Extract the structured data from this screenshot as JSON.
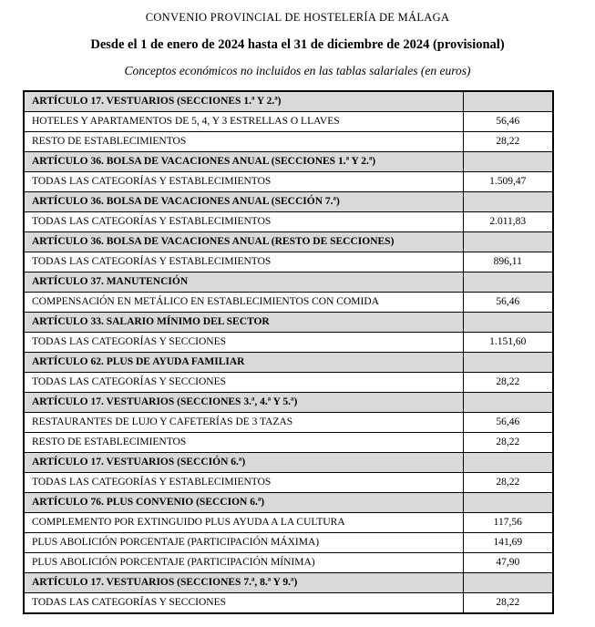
{
  "page": {
    "title": "CONVENIO PROVINCIAL DE HOSTELERÍA DE MÁLAGA",
    "subtitle": "Desde el 1 de enero de 2024 hasta el 31 de diciembre de 2024 (provisional)",
    "caption": "Conceptos económicos no incluidos en las tablas salariales (en euros)"
  },
  "colors": {
    "section_row_background": "#d9d9d9",
    "border": "#000000",
    "text": "#000000",
    "page_background": "#ffffff"
  },
  "table": {
    "rows": [
      {
        "type": "section",
        "label": "ARTÍCULO 17. VESTUARIOS (SECCIONES 1.ª Y 2.ª)",
        "value": ""
      },
      {
        "type": "item",
        "label": "HOTELES Y APARTAMENTOS DE 5, 4, Y 3 ESTRELLAS O LLAVES",
        "value": "56,46"
      },
      {
        "type": "item",
        "label": "RESTO DE ESTABLECIMIENTOS",
        "value": "28,22"
      },
      {
        "type": "section",
        "label": "ARTÍCULO 36. BOLSA DE VACACIONES ANUAL (SECCIONES 1.ª Y 2.ª)",
        "value": ""
      },
      {
        "type": "item",
        "label": "TODAS LAS CATEGORÍAS Y ESTABLECIMIENTOS",
        "value": "1.509,47"
      },
      {
        "type": "section",
        "label": "ARTÍCULO 36. BOLSA DE VACACIONES ANUAL (SECCIÓN 7.ª)",
        "value": ""
      },
      {
        "type": "item",
        "label": "TODAS LAS CATEGORÍAS Y ESTABLECIMIENTOS",
        "value": "2.011,83"
      },
      {
        "type": "section",
        "label": "ARTÍCULO 36. BOLSA DE VACACIONES ANUAL (RESTO DE SECCIONES)",
        "value": ""
      },
      {
        "type": "item",
        "label": "TODAS LAS CATEGORÍAS Y ESTABLECIMIENTOS",
        "value": "896,11"
      },
      {
        "type": "section",
        "label": "ARTÍCULO 37. MANUTENCIÓN",
        "value": ""
      },
      {
        "type": "item",
        "label": "COMPENSACIÓN EN METÁLICO EN ESTABLECIMIENTOS CON COMIDA",
        "value": "56,46"
      },
      {
        "type": "section",
        "label": "ARTÍCULO 33. SALARIO MÍNIMO DEL SECTOR",
        "value": ""
      },
      {
        "type": "item",
        "label": "TODAS LAS CATEGORÍAS Y SECCIONES",
        "value": "1.151,60"
      },
      {
        "type": "section",
        "label": "ARTÍCULO 62. PLUS DE AYUDA FAMILIAR",
        "value": ""
      },
      {
        "type": "item",
        "label": "TODAS LAS CATEGORÍAS Y SECCIONES",
        "value": "28,22"
      },
      {
        "type": "section",
        "label": "ARTÍCULO 17. VESTUARIOS (SECCIONES 3.ª, 4.ª Y 5.ª)",
        "value": ""
      },
      {
        "type": "item",
        "label": "RESTAURANTES DE LUJO Y CAFETERÍAS DE 3 TAZAS",
        "value": "56,46"
      },
      {
        "type": "item",
        "label": "RESTO DE ESTABLECIMIENTOS",
        "value": "28,22"
      },
      {
        "type": "section",
        "label": "ARTÍCULO 17. VESTUARIOS (SECCIÓN 6.ª)",
        "value": ""
      },
      {
        "type": "item",
        "label": "TODAS LAS CATEGORÍAS Y ESTABLECIMIENTOS",
        "value": "28,22"
      },
      {
        "type": "section",
        "label": "ARTÍCULO 76. PLUS CONVENIO (SECCION 6.ª)",
        "value": ""
      },
      {
        "type": "item",
        "label": "COMPLEMENTO POR EXTINGUIDO PLUS AYUDA A LA CULTURA",
        "value": "117,56"
      },
      {
        "type": "item",
        "label": "PLUS ABOLICIÓN PORCENTAJE (PARTICIPACIÓN MÁXIMA)",
        "value": "141,69"
      },
      {
        "type": "item",
        "label": "PLUS ABOLICIÓN PORCENTAJE (PARTICIPACIÓN MÍNIMA)",
        "value": "47,90"
      },
      {
        "type": "section",
        "label": "ARTÍCULO 17. VESTUARIOS (SECCIONES 7.ª, 8.ª Y 9.ª)",
        "value": ""
      },
      {
        "type": "item",
        "label": "TODAS LAS CATEGORÍAS Y SECCIONES",
        "value": "28,22"
      }
    ]
  }
}
